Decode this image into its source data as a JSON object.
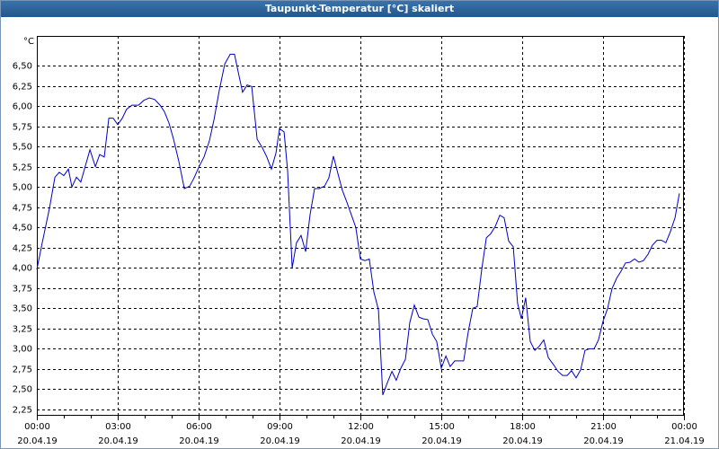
{
  "chart_data": {
    "type": "line",
    "title": "Taupunkt-Temperatur [°C] skaliert",
    "y_unit": "°C",
    "x": [
      0,
      0.2,
      0.47,
      0.67,
      0.83,
      1.0,
      1.17,
      1.3,
      1.47,
      1.63,
      1.8,
      1.97,
      2.17,
      2.33,
      2.5,
      2.67,
      2.83,
      3.0,
      3.17,
      3.33,
      3.53,
      3.77,
      3.97,
      4.17,
      4.37,
      4.57,
      4.73,
      4.9,
      5.07,
      5.27,
      5.47,
      5.67,
      5.83,
      6.03,
      6.2,
      6.4,
      6.57,
      6.77,
      6.97,
      7.17,
      7.33,
      7.5,
      7.63,
      7.8,
      7.97,
      8.17,
      8.37,
      8.53,
      8.7,
      8.87,
      9.0,
      9.17,
      9.3,
      9.47,
      9.63,
      9.8,
      9.97,
      10.13,
      10.3,
      10.47,
      10.67,
      10.83,
      11.0,
      11.17,
      11.33,
      11.5,
      11.67,
      11.83,
      12.0,
      12.17,
      12.33,
      12.5,
      12.67,
      12.83,
      13.0,
      13.17,
      13.33,
      13.5,
      13.67,
      13.83,
      14.0,
      14.17,
      14.33,
      14.5,
      14.67,
      14.83,
      15.0,
      15.17,
      15.33,
      15.5,
      15.67,
      15.83,
      16.0,
      16.17,
      16.33,
      16.5,
      16.67,
      16.83,
      17.0,
      17.17,
      17.33,
      17.5,
      17.67,
      17.83,
      17.97,
      18.13,
      18.3,
      18.47,
      18.63,
      18.8,
      18.97,
      19.17,
      19.33,
      19.5,
      19.67,
      19.83,
      20.0,
      20.17,
      20.33,
      20.5,
      20.67,
      20.83,
      21.0,
      21.17,
      21.33,
      21.5,
      21.67,
      21.83,
      22.0,
      22.17,
      22.33,
      22.5,
      22.67,
      22.83,
      23.0,
      23.17,
      23.33,
      23.5,
      23.67,
      23.83
    ],
    "series": [
      {
        "name": "Taupunkt-Temperatur",
        "color": "#0000c8",
        "values": [
          3.98,
          4.31,
          4.74,
          5.12,
          5.18,
          5.14,
          5.22,
          5.0,
          5.12,
          5.06,
          5.26,
          5.46,
          5.25,
          5.4,
          5.37,
          5.85,
          5.85,
          5.77,
          5.85,
          5.96,
          6.01,
          6.01,
          6.07,
          6.1,
          6.08,
          6.01,
          5.93,
          5.79,
          5.59,
          5.31,
          4.98,
          5.01,
          5.11,
          5.26,
          5.37,
          5.57,
          5.83,
          6.2,
          6.52,
          6.64,
          6.64,
          6.37,
          6.17,
          6.26,
          6.24,
          5.59,
          5.48,
          5.37,
          5.22,
          5.42,
          5.72,
          5.68,
          5.2,
          4.0,
          4.31,
          4.4,
          4.2,
          4.65,
          4.98,
          4.98,
          5.01,
          5.11,
          5.38,
          5.16,
          4.96,
          4.81,
          4.65,
          4.5,
          4.11,
          4.09,
          4.11,
          3.7,
          3.48,
          2.43,
          2.58,
          2.72,
          2.61,
          2.76,
          2.87,
          3.32,
          3.54,
          3.39,
          3.37,
          3.36,
          3.18,
          3.09,
          2.76,
          2.91,
          2.78,
          2.85,
          2.85,
          2.85,
          3.21,
          3.5,
          3.52,
          3.98,
          4.37,
          4.42,
          4.51,
          4.65,
          4.62,
          4.33,
          4.26,
          3.56,
          3.37,
          3.63,
          3.09,
          2.98,
          3.03,
          3.11,
          2.89,
          2.8,
          2.72,
          2.67,
          2.67,
          2.73,
          2.64,
          2.74,
          2.98,
          3.0,
          3.0,
          3.11,
          3.34,
          3.5,
          3.74,
          3.87,
          3.96,
          4.06,
          4.07,
          4.11,
          4.07,
          4.09,
          4.17,
          4.28,
          4.34,
          4.34,
          4.31,
          4.45,
          4.62,
          4.92
        ]
      }
    ],
    "xlim": [
      0,
      24
    ],
    "xticks": [
      {
        "value": 0,
        "label": "00:00"
      },
      {
        "value": 3,
        "label": "03:00"
      },
      {
        "value": 6,
        "label": "06:00"
      },
      {
        "value": 9,
        "label": "09:00"
      },
      {
        "value": 12,
        "label": "12:00"
      },
      {
        "value": 15,
        "label": "15:00"
      },
      {
        "value": 18,
        "label": "18:00"
      },
      {
        "value": 21,
        "label": "21:00"
      },
      {
        "value": 24,
        "label": "00:00"
      }
    ],
    "xtick_dates": [
      "20.04.19",
      "20.04.19",
      "20.04.19",
      "20.04.19",
      "20.04.19",
      "20.04.19",
      "20.04.19",
      "20.04.19",
      "21.04.19"
    ],
    "ylim": [
      2.172,
      6.866
    ],
    "yticks": [
      {
        "value": 2.25,
        "label": "2,25"
      },
      {
        "value": 2.5,
        "label": "2,50"
      },
      {
        "value": 2.75,
        "label": "2,75"
      },
      {
        "value": 3,
        "label": "3,00"
      },
      {
        "value": 3.25,
        "label": "3,25"
      },
      {
        "value": 3.5,
        "label": "3,50"
      },
      {
        "value": 3.75,
        "label": "3,75"
      },
      {
        "value": 4,
        "label": "4,00"
      },
      {
        "value": 4.25,
        "label": "4,25"
      },
      {
        "value": 4.5,
        "label": "4,50"
      },
      {
        "value": 4.75,
        "label": "4,75"
      },
      {
        "value": 5,
        "label": "5,00"
      },
      {
        "value": 5.25,
        "label": "5,25"
      },
      {
        "value": 5.5,
        "label": "5,50"
      },
      {
        "value": 5.75,
        "label": "5,75"
      },
      {
        "value": 6,
        "label": "6,00"
      },
      {
        "value": 6.25,
        "label": "6,25"
      },
      {
        "value": 6.5,
        "label": "6,50"
      }
    ],
    "grid": true
  }
}
